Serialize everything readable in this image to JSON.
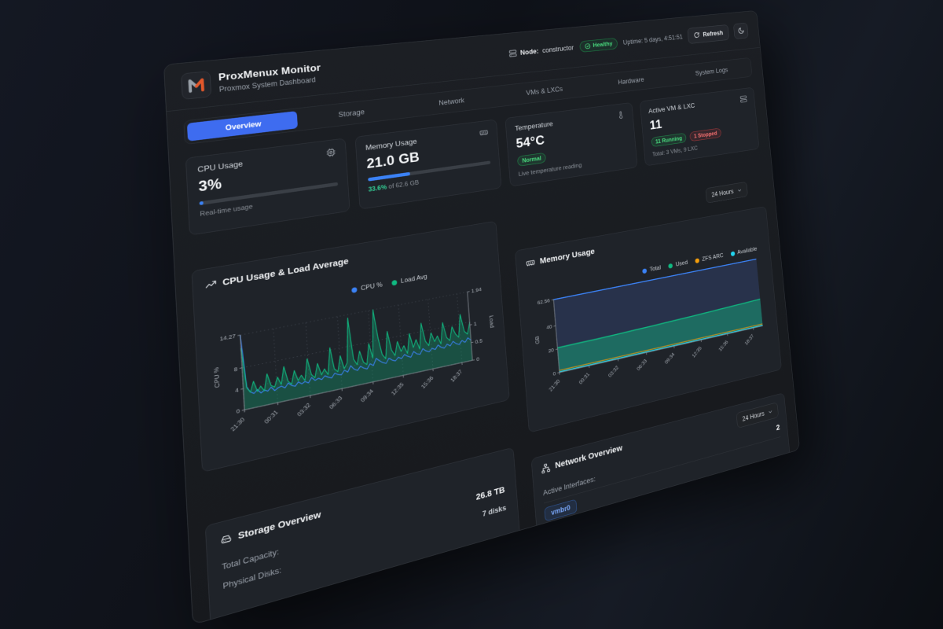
{
  "statusbar": {
    "node_label": "Node:",
    "node_value": "constructor",
    "health_label": "Healthy",
    "uptime": "Uptime: 5 days, 4:51:51",
    "refresh_label": "Refresh"
  },
  "header": {
    "title": "ProxMenux Monitor",
    "subtitle": "Proxmox System Dashboard"
  },
  "tabs": [
    {
      "label": "Overview",
      "active": true
    },
    {
      "label": "Storage",
      "active": false
    },
    {
      "label": "Network",
      "active": false
    },
    {
      "label": "VMs & LXCs",
      "active": false
    },
    {
      "label": "Hardware",
      "active": false
    },
    {
      "label": "System Logs",
      "active": false
    }
  ],
  "stats": {
    "cpu": {
      "label": "CPU Usage",
      "value": "3%",
      "percent": 3,
      "caption": "Real-time usage"
    },
    "memory": {
      "label": "Memory Usage",
      "value": "21.0 GB",
      "percent": 33.6,
      "caption_percent": "33.6%",
      "caption_rest": "of 62.6 GB"
    },
    "temperature": {
      "label": "Temperature",
      "value": "54°C",
      "badge": "Normal",
      "caption": "Live temperature reading"
    },
    "vms": {
      "label": "Active VM & LXC",
      "value": "11",
      "running": "11 Running",
      "stopped": "1 Stopped",
      "caption": "Total: 3 VMs, 9 LXC"
    }
  },
  "time_range": {
    "label": "24 Hours"
  },
  "time_range2": {
    "label": "24 Hours"
  },
  "storage": {
    "title": "Storage Overview",
    "rows": [
      {
        "label": "Total Capacity:",
        "value": "26.8 TB"
      },
      {
        "label": "Physical Disks:",
        "value": "7 disks"
      }
    ]
  },
  "network": {
    "title": "Network Overview",
    "active_label": "Active Interfaces:",
    "active_value": "2",
    "interface_pill": "vmbr0"
  },
  "colors": {
    "accent_blue": "#3b82f6",
    "green": "#10b981",
    "orange": "#f59e0b",
    "cyan": "#22d3ee",
    "red": "#ef4444"
  },
  "chart_data": [
    {
      "type": "line",
      "title": "CPU Usage & Load Average",
      "legend": [
        {
          "label": "CPU %",
          "color": "#3b82f6"
        },
        {
          "label": "Load Avg",
          "color": "#10b981"
        }
      ],
      "x_ticks": [
        "21:30",
        "00:31",
        "03:32",
        "06:33",
        "09:34",
        "12:35",
        "15:36",
        "18:37"
      ],
      "y_left": {
        "label": "CPU %",
        "ticks": [
          "0",
          "4",
          "8",
          "14.27"
        ],
        "tick_values": [
          0,
          4,
          8,
          14.27
        ],
        "max": 14.27
      },
      "y_right": {
        "label": "Load",
        "ticks": [
          "0",
          "0.5",
          "1",
          "1.94"
        ],
        "tick_values": [
          0,
          0.5,
          1,
          1.94
        ],
        "max": 1.94
      },
      "grid": "dashed",
      "legend_position": "top-right",
      "series": [
        {
          "name": "CPU %",
          "axis": "left",
          "color": "#3b82f6",
          "values": [
            14.27,
            4.2,
            3.1,
            2.7,
            3.3,
            2.5,
            2.9,
            2.6,
            3.2,
            2.4,
            2.8,
            3.0,
            2.5,
            3.3,
            2.7,
            2.4,
            3.1,
            2.6,
            2.9,
            2.5,
            3.4,
            2.7,
            3.0,
            2.6,
            3.2,
            2.8,
            2.5,
            3.3,
            2.9,
            2.7,
            3.5,
            3.0,
            4.1,
            3.3,
            2.9,
            3.6,
            3.1,
            2.8,
            3.7,
            3.2,
            4.5,
            3.9,
            3.4,
            3.1,
            4.0,
            3.5,
            3.2,
            3.8,
            3.4,
            4.1,
            3.6,
            3.3,
            4.3,
            3.7,
            3.5,
            4.5,
            3.9,
            3.6,
            4.2,
            3.8,
            4.6,
            4.0,
            3.7,
            4.4,
            3.9,
            4.7,
            4.1,
            3.8,
            4.5,
            4.0,
            4.8,
            4.2
          ]
        },
        {
          "name": "Load Avg",
          "axis": "right",
          "color": "#10b981",
          "area": true,
          "values": [
            1.6,
            0.55,
            0.42,
            0.68,
            0.4,
            0.52,
            0.38,
            0.8,
            0.48,
            0.42,
            0.66,
            0.45,
            0.9,
            0.5,
            0.4,
            0.74,
            0.46,
            0.58,
            0.42,
            0.98,
            0.54,
            0.44,
            0.8,
            0.48,
            0.62,
            0.45,
            1.15,
            0.56,
            0.47,
            0.88,
            0.52,
            0.66,
            1.85,
            0.72,
            0.55,
            0.9,
            0.58,
            0.5,
            1.05,
            0.64,
            1.94,
            1.15,
            0.68,
            0.55,
            1.28,
            0.75,
            0.58,
            0.95,
            0.66,
            0.8,
            0.57,
            1.1,
            0.7,
            0.9,
            0.62,
            1.32,
            0.8,
            0.66,
            1.0,
            0.74,
            0.88,
            0.64,
            1.22,
            0.78,
            0.68,
            1.05,
            0.83,
            0.72,
            1.35,
            0.85,
            0.76,
            1.08
          ]
        }
      ]
    },
    {
      "type": "area",
      "title": "Memory Usage",
      "legend": [
        {
          "label": "Total",
          "color": "#3b82f6"
        },
        {
          "label": "Used",
          "color": "#10b981"
        },
        {
          "label": "ZFS ARC",
          "color": "#f59e0b"
        },
        {
          "label": "Available",
          "color": "#22d3ee"
        }
      ],
      "x_ticks": [
        "21:30",
        "00:31",
        "03:32",
        "06:33",
        "09:34",
        "12:35",
        "15:36",
        "18:37"
      ],
      "y": {
        "label": "GB",
        "ticks": [
          "0",
          "20",
          "40",
          "62.56"
        ],
        "tick_values": [
          0,
          20,
          40,
          62.56
        ],
        "max": 62.56
      },
      "grid": "dashed",
      "legend_position": "top-right",
      "series": [
        {
          "name": "Total",
          "color": "#3b82f6",
          "values": [
            62.56,
            62.56,
            62.56,
            62.56,
            62.56,
            62.56,
            62.56,
            62.56,
            62.56,
            62.56,
            62.56,
            62.56
          ]
        },
        {
          "name": "Used",
          "color": "#10b981",
          "values": [
            21.1,
            21.3,
            21.2,
            21.5,
            21.8,
            22.1,
            22.5,
            22.9,
            23.4,
            23.9,
            24.4,
            25.0
          ]
        },
        {
          "name": "ZFS ARC",
          "color": "#f59e0b",
          "values": [
            1.8,
            1.8,
            1.8,
            1.8,
            1.8,
            1.8,
            1.8,
            1.8,
            1.8,
            1.8,
            1.8,
            1.8
          ]
        },
        {
          "name": "Available",
          "color": "#22d3ee",
          "values": [
            0.5,
            0.5,
            0.5,
            0.5,
            0.5,
            0.5,
            0.5,
            0.5,
            0.5,
            0.5,
            0.5,
            0.5
          ]
        }
      ]
    }
  ]
}
